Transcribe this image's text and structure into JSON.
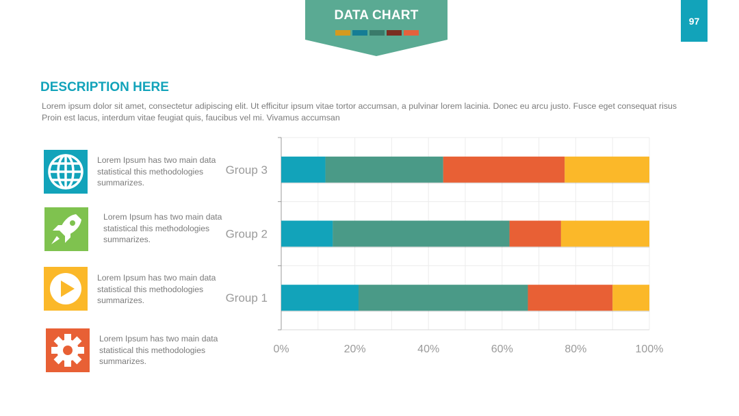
{
  "header": {
    "title": "DATA CHART",
    "page_number": "97",
    "banner_color": "#5aaa93",
    "swatch_colors": [
      "#d49a1f",
      "#157d95",
      "#3a7a6a",
      "#7a2d21",
      "#e4613d"
    ]
  },
  "description": {
    "title": "DESCRIPTION HERE",
    "body": "Lorem ipsum dolor sit amet, consectetur adipiscing elit. Ut efficitur ipsum vitae tortor accumsan, a pulvinar lorem lacinia. Donec eu arcu justo. Fusce eget consequat risus Proin est lacus, interdum vitae feugiat quis, faucibus vel mi.  Vivamus accumsan"
  },
  "features": [
    {
      "icon": "globe-icon",
      "color": "#12a3ba",
      "text": "Lorem Ipsum has two main data statistical this methodologies summarizes."
    },
    {
      "icon": "rocket-icon",
      "color": "#7fc24f",
      "text": "Lorem Ipsum has two main data statistical this methodologies summarizes."
    },
    {
      "icon": "play-icon",
      "color": "#fbb829",
      "text": "Lorem Ipsum has two main data statistical this methodologies summarizes."
    },
    {
      "icon": "gear-icon",
      "color": "#e86035",
      "text": "Lorem Ipsum has two main data statistical this methodologies summarizes."
    }
  ],
  "chart_data": {
    "type": "bar",
    "orientation": "horizontal",
    "stacked": "100%",
    "categories": [
      "Group 3",
      "Group 2",
      "Group 1"
    ],
    "series": [
      {
        "color": "#12a3ba",
        "values": [
          12,
          14,
          21
        ]
      },
      {
        "color": "#4a9a87",
        "values": [
          32,
          48,
          46
        ]
      },
      {
        "color": "#e86035",
        "values": [
          33,
          14,
          23
        ]
      },
      {
        "color": "#fbb829",
        "values": [
          23,
          24,
          10
        ]
      }
    ],
    "xlim": [
      0,
      100
    ],
    "xticks": [
      "0%",
      "20%",
      "40%",
      "60%",
      "80%",
      "100%"
    ],
    "grid": true,
    "title": "",
    "xlabel": "",
    "ylabel": ""
  }
}
